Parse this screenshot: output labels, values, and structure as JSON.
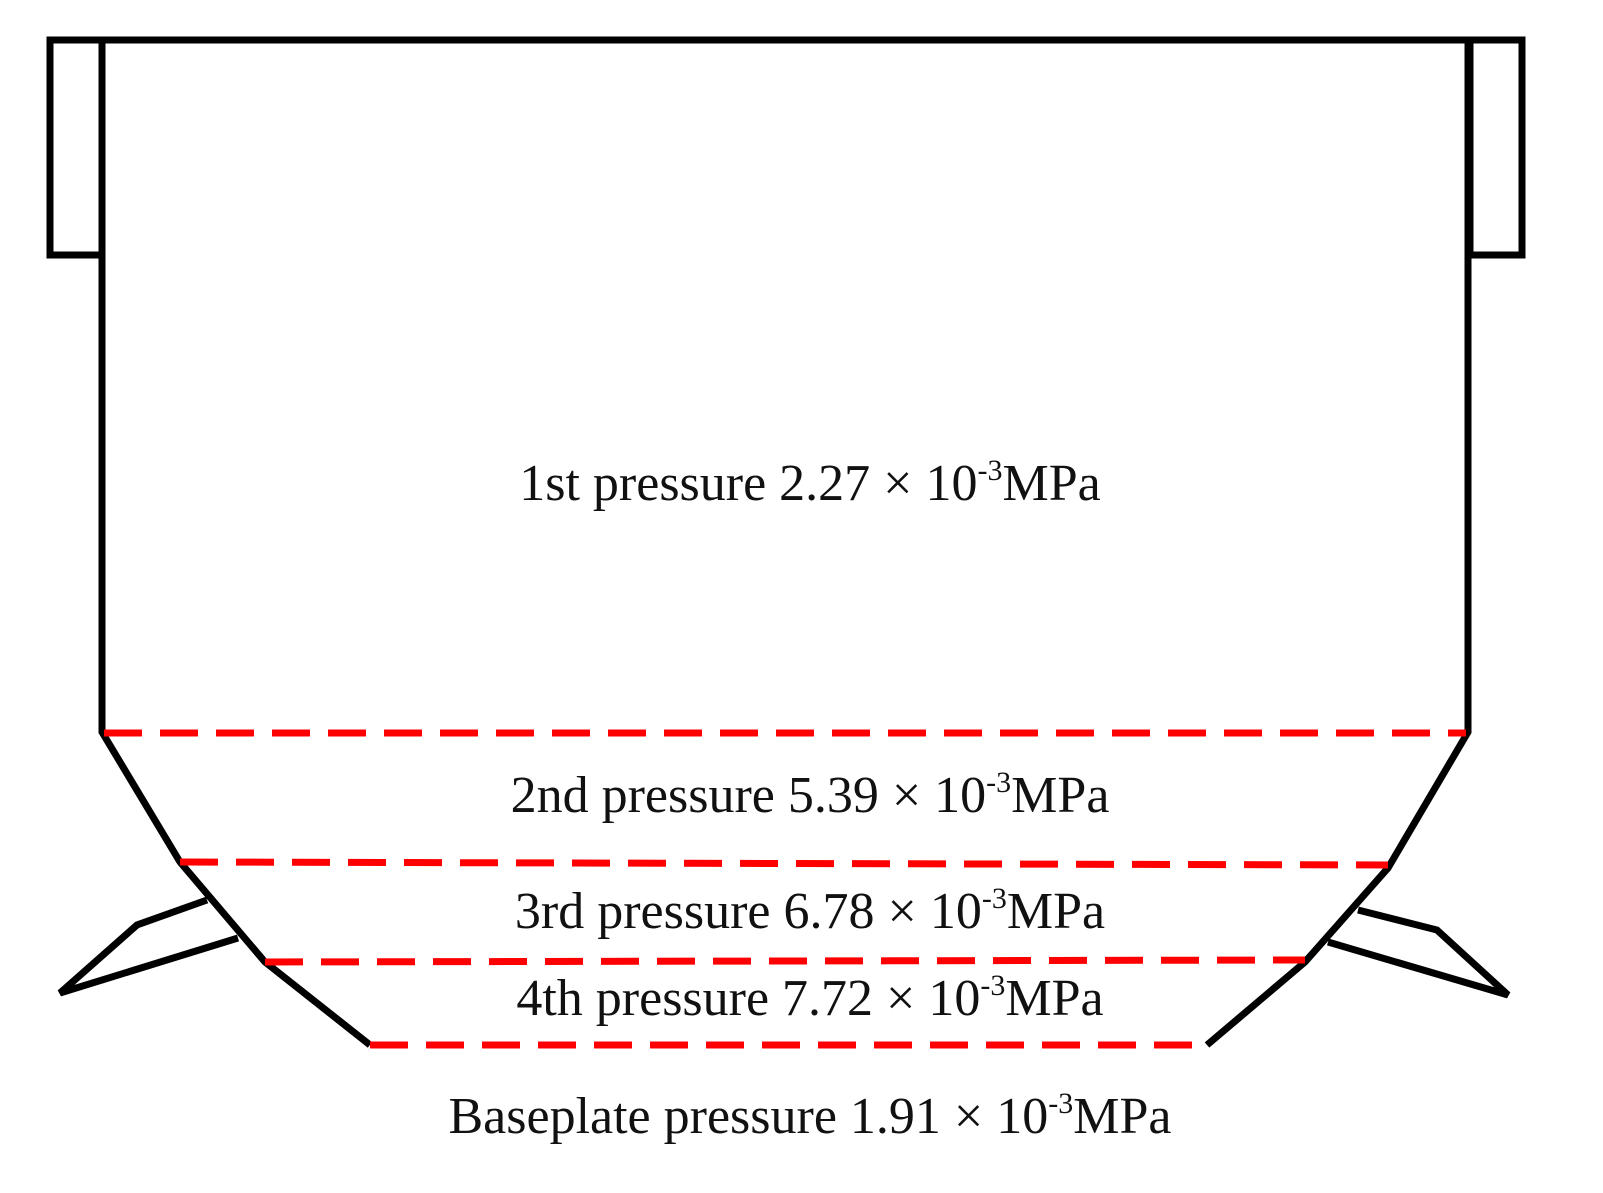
{
  "labels": [
    {
      "text": "1st pressure 2.27 × 10",
      "exponent": "-3",
      "unit": "MPa"
    },
    {
      "text": "2nd pressure 5.39 × 10",
      "exponent": "-3",
      "unit": "MPa"
    },
    {
      "text": "3rd pressure 6.78 × 10",
      "exponent": "-3",
      "unit": "MPa"
    },
    {
      "text": "4th pressure 7.72 × 10",
      "exponent": "-3",
      "unit": "MPa"
    },
    {
      "text": "Baseplate pressure 1.91 × 10",
      "exponent": "-3",
      "unit": "MPa"
    }
  ]
}
